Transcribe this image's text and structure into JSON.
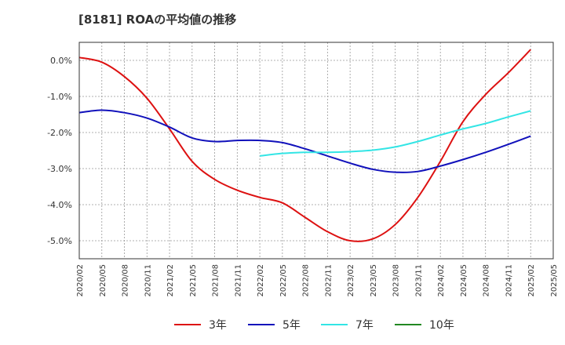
{
  "chart_data": {
    "type": "line",
    "title": "[8181]  ROAの平均値の推移",
    "xlabel": "",
    "ylabel": "",
    "ylim": [
      -5.5,
      0.5
    ],
    "yticks": [
      0.0,
      -1.0,
      -2.0,
      -3.0,
      -4.0,
      -5.0
    ],
    "ytick_labels": [
      "0.0%",
      "-1.0%",
      "-2.0%",
      "-3.0%",
      "-4.0%",
      "-5.0%"
    ],
    "x_start": "2020-02",
    "x_end": "2025-05",
    "x_tick_labels": [
      "2020/02",
      "2020/05",
      "2020/08",
      "2020/11",
      "2021/02",
      "2021/05",
      "2021/08",
      "2021/11",
      "2022/02",
      "2022/05",
      "2022/08",
      "2022/11",
      "2023/02",
      "2023/05",
      "2023/08",
      "2023/11",
      "2024/02",
      "2024/05",
      "2024/08",
      "2024/11",
      "2025/02",
      "2025/05"
    ],
    "grid": true,
    "legend_position": "bottom",
    "series": [
      {
        "name": "3年",
        "color": "#dd1111",
        "points": [
          [
            "2020-02",
            0.08
          ],
          [
            "2020-05",
            -0.05
          ],
          [
            "2020-08",
            -0.45
          ],
          [
            "2020-11",
            -1.05
          ],
          [
            "2021-02",
            -1.9
          ],
          [
            "2021-05",
            -2.8
          ],
          [
            "2021-08",
            -3.3
          ],
          [
            "2021-11",
            -3.6
          ],
          [
            "2022-02",
            -3.8
          ],
          [
            "2022-05",
            -3.95
          ],
          [
            "2022-08",
            -4.35
          ],
          [
            "2022-11",
            -4.75
          ],
          [
            "2023-02",
            -5.0
          ],
          [
            "2023-05",
            -4.95
          ],
          [
            "2023-08",
            -4.55
          ],
          [
            "2023-11",
            -3.8
          ],
          [
            "2024-02",
            -2.8
          ],
          [
            "2024-05",
            -1.7
          ],
          [
            "2024-08",
            -0.95
          ],
          [
            "2024-11",
            -0.35
          ],
          [
            "2025-02",
            0.3
          ]
        ]
      },
      {
        "name": "5年",
        "color": "#1111bb",
        "points": [
          [
            "2020-02",
            -1.45
          ],
          [
            "2020-05",
            -1.38
          ],
          [
            "2020-08",
            -1.45
          ],
          [
            "2020-11",
            -1.6
          ],
          [
            "2021-02",
            -1.85
          ],
          [
            "2021-05",
            -2.15
          ],
          [
            "2021-08",
            -2.25
          ],
          [
            "2021-11",
            -2.22
          ],
          [
            "2022-02",
            -2.22
          ],
          [
            "2022-05",
            -2.28
          ],
          [
            "2022-08",
            -2.45
          ],
          [
            "2022-11",
            -2.65
          ],
          [
            "2023-02",
            -2.85
          ],
          [
            "2023-05",
            -3.02
          ],
          [
            "2023-08",
            -3.1
          ],
          [
            "2023-11",
            -3.08
          ],
          [
            "2024-02",
            -2.93
          ],
          [
            "2024-05",
            -2.75
          ],
          [
            "2024-08",
            -2.55
          ],
          [
            "2024-11",
            -2.33
          ],
          [
            "2025-02",
            -2.1
          ]
        ]
      },
      {
        "name": "7年",
        "color": "#33e5e5",
        "points": [
          [
            "2022-02",
            -2.65
          ],
          [
            "2022-05",
            -2.58
          ],
          [
            "2022-08",
            -2.55
          ],
          [
            "2022-11",
            -2.55
          ],
          [
            "2023-02",
            -2.53
          ],
          [
            "2023-05",
            -2.49
          ],
          [
            "2023-08",
            -2.4
          ],
          [
            "2023-11",
            -2.25
          ],
          [
            "2024-02",
            -2.07
          ],
          [
            "2024-05",
            -1.9
          ],
          [
            "2024-08",
            -1.75
          ],
          [
            "2024-11",
            -1.57
          ],
          [
            "2025-02",
            -1.4
          ]
        ]
      },
      {
        "name": "10年",
        "color": "#228822",
        "points": []
      }
    ]
  }
}
